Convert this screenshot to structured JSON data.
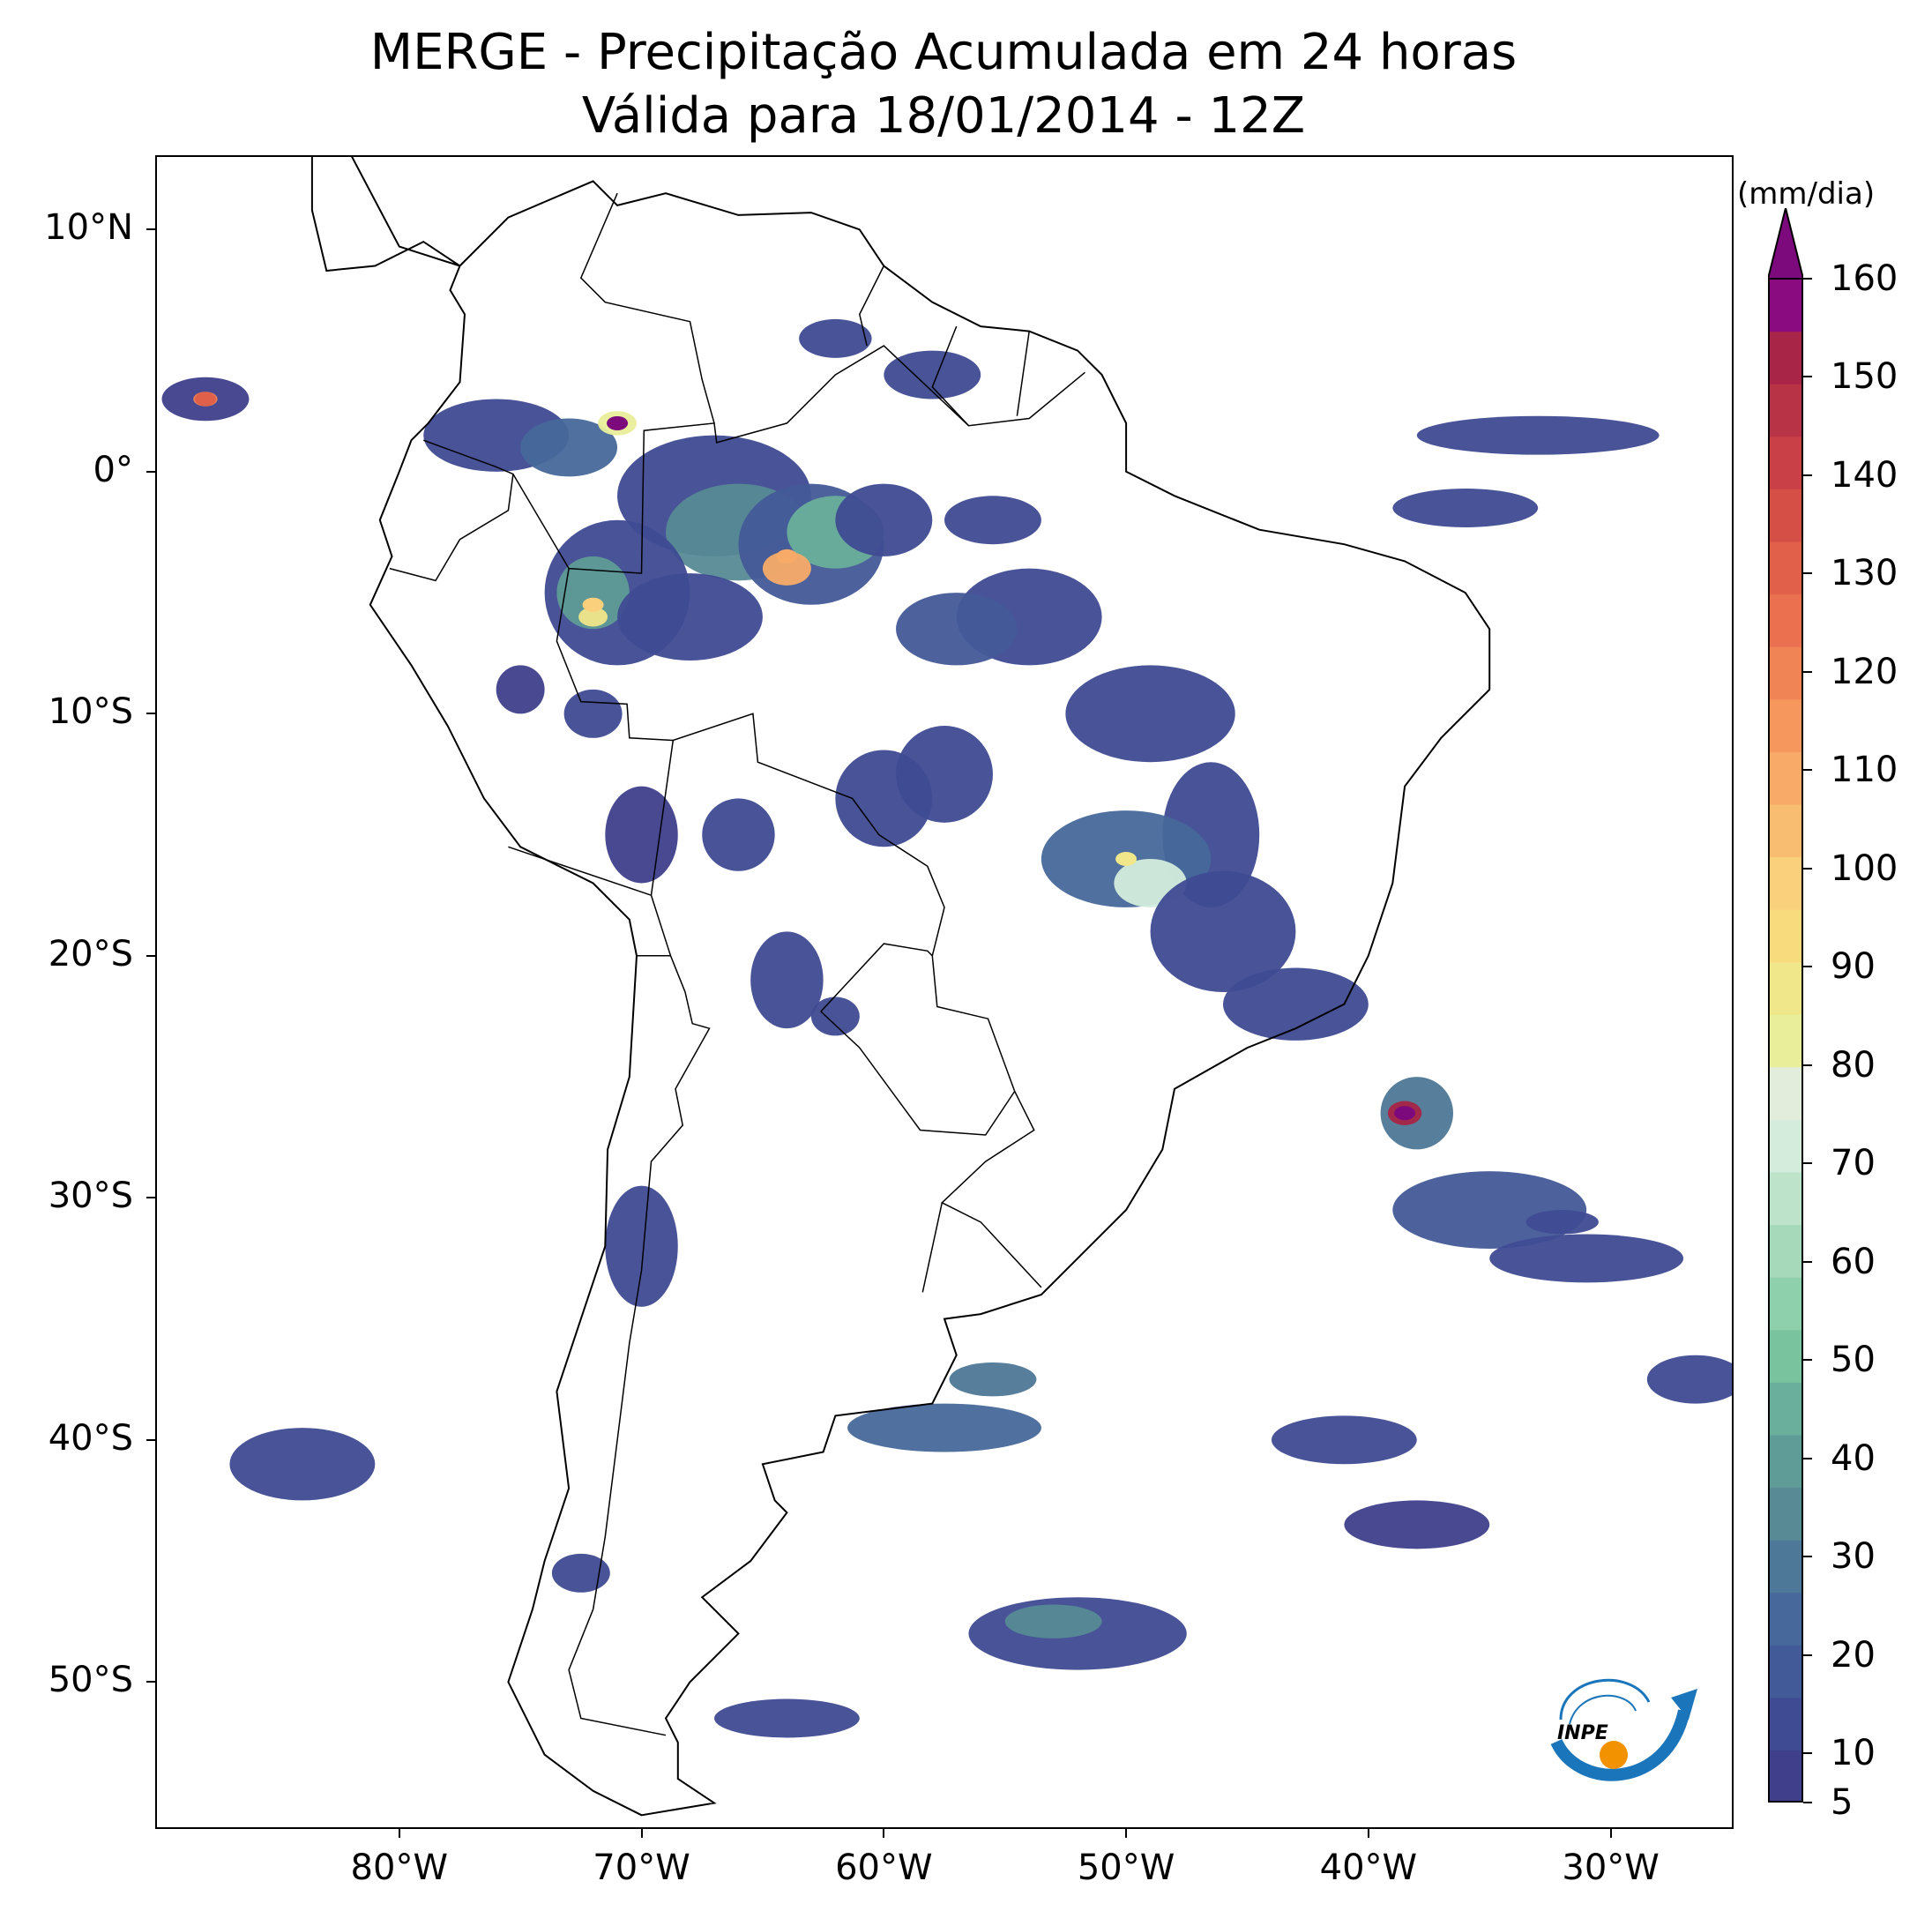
{
  "title": {
    "line1": "MERGE - Precipitação Acumulada em 24 horas",
    "line2": "Válida para 18/01/2014 - 12Z"
  },
  "map": {
    "lon_range": [
      -90,
      -25
    ],
    "lat_range": [
      -56,
      13
    ],
    "lat_ticks": [
      {
        "value": 10,
        "label": "10°N"
      },
      {
        "value": 0,
        "label": "0°"
      },
      {
        "value": -10,
        "label": "10°S"
      },
      {
        "value": -20,
        "label": "20°S"
      },
      {
        "value": -30,
        "label": "30°S"
      },
      {
        "value": -40,
        "label": "40°S"
      },
      {
        "value": -50,
        "label": "50°S"
      }
    ],
    "lon_ticks": [
      {
        "value": -80,
        "label": "80°W"
      },
      {
        "value": -70,
        "label": "70°W"
      },
      {
        "value": -60,
        "label": "60°W"
      },
      {
        "value": -50,
        "label": "50°W"
      },
      {
        "value": -40,
        "label": "40°W"
      },
      {
        "value": -30,
        "label": "30°W"
      }
    ],
    "heavy_rain_cores": [
      {
        "lon": -38.5,
        "lat": -26.5,
        "mm": 160
      },
      {
        "lon": -71,
        "lat": 2.0,
        "mm": 160
      },
      {
        "lon": -88,
        "lat": 3.0,
        "mm": 130
      },
      {
        "lon": -64,
        "lat": -3.5,
        "mm": 110
      },
      {
        "lon": -72,
        "lat": -5.5,
        "mm": 100
      },
      {
        "lon": -50,
        "lat": -16,
        "mm": 90
      }
    ]
  },
  "colorbar": {
    "unit": "(mm/dia)",
    "min": 5,
    "max": 160,
    "extend": "max",
    "labels": [
      "5",
      "10",
      "20",
      "30",
      "40",
      "50",
      "60",
      "70",
      "80",
      "90",
      "100",
      "110",
      "120",
      "130",
      "140",
      "150",
      "160"
    ],
    "colors": [
      "#3f3f8c",
      "#3f4b92",
      "#435a98",
      "#47689a",
      "#4e7897",
      "#578a95",
      "#5f9c97",
      "#6aaf9b",
      "#79c39f",
      "#8ed0ab",
      "#a6d9ba",
      "#bde3cb",
      "#d3ecdc",
      "#e3eddc",
      "#e8ee9a",
      "#f0e68a",
      "#f8db7c",
      "#fbd07c",
      "#f9bd72",
      "#f8ab68",
      "#f6975e",
      "#f18455",
      "#ea7050",
      "#e1604a",
      "#d64f46",
      "#c94146",
      "#b93346",
      "#a82547",
      "#8a0a80"
    ],
    "extend_color": "#7d0a7d"
  },
  "logo": {
    "text": "INPE"
  }
}
